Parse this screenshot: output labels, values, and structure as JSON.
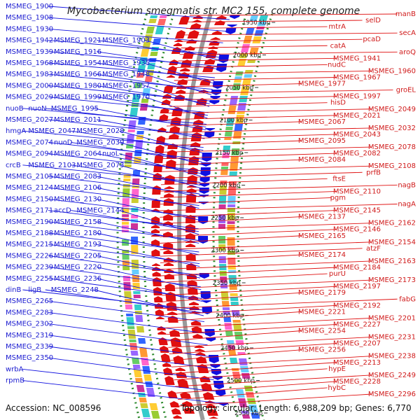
{
  "title": "Mycobacterium smegmatis str. MC2 155, complete genome",
  "accession": "Accession: NC_008596",
  "summary": "Topology: circular; Length: 6,988,209 bp; Genes: 6,770",
  "colors": {
    "forward": "#e01010",
    "reverse": "#1010e0",
    "backbone": "#9a9a9a",
    "guide": "#2e8b2e"
  },
  "ticks": [
    "1950 kbp",
    "2000 kbp",
    "2050 kbp",
    "2100 kbp",
    "2150 kbp",
    "2200 kbp",
    "2250 kbp",
    "2300 kbp",
    "2350 kbp",
    "2400 kbp",
    "2450 kbp",
    "2500 kbp",
    "2550 kbp"
  ],
  "left_labels": [
    [
      "MSMEG_1900"
    ],
    [
      "MSMEG_1908"
    ],
    [
      "MSMEG_1930"
    ],
    [
      "MSMEG_1942",
      "MSMEG_1921",
      "MSMEG_1903"
    ],
    [
      "MSMEG_1939",
      "MSMEG_1916"
    ],
    [
      "MSMEG_1968",
      "MSMEG_1954",
      "MSMEG_1935"
    ],
    [
      "MSMEG_1983",
      "MSMEG_1966",
      "MSMEG_1948"
    ],
    [
      "MSMEG_2000",
      "MSMEG_1980",
      "MSMEG_1957"
    ],
    [
      "MSMEG_2029",
      "MSMEG_1999",
      "MSMEG_1970"
    ],
    [
      "nuoB",
      "nuoN",
      "MSMEG_1995"
    ],
    [
      "MSMEG_2027",
      "MSMEG_2011"
    ],
    [
      "hmgA",
      "MSMEG_2047",
      "MSMEG_2028"
    ],
    [
      "MSMEG_2074",
      "nuoD",
      "MSMEG_2039"
    ],
    [
      "MSMEG_2094",
      "MSMEG_2064",
      "nuoL"
    ],
    [
      "crcB",
      "MSMEG_2103",
      "MSMEG_2073"
    ],
    [
      "MSMEG_2105",
      "MSMEG_2083"
    ],
    [
      "MSMEG_2124",
      "MSMEG_2106"
    ],
    [
      "MSMEG_2150",
      "MSMEG_2130"
    ],
    [
      "MSMEG_2171",
      "accD",
      "MSMEG_2144"
    ],
    [
      "MSMEG_2190",
      "MSMEG_2158"
    ],
    [
      "MSMEG_2188",
      "MSMEG_2180"
    ],
    [
      "MSMEG_2215",
      "MSMEG_2193"
    ],
    [
      "MSMEG_2226",
      "MSMEG_2205"
    ],
    [
      "MSMEG_2239",
      "MSMEG_2220"
    ],
    [
      "MSMEG_2255",
      "MSMEG_2236"
    ],
    [
      "dinB",
      "ligB",
      "MSMEG_2248"
    ],
    [
      "MSMEG_2265"
    ],
    [
      "MSMEG_2283"
    ],
    [
      "MSMEG_2302"
    ],
    [
      "MSMEG_2319"
    ],
    [
      "MSMEG_2339"
    ],
    [
      "MSMEG_2350"
    ],
    [
      "wrbA"
    ],
    [
      "rpmB"
    ]
  ],
  "right_labels": [
    "manB",
    "selD",
    "mtrA",
    "secA",
    "pcaD",
    "catA",
    "aroQ",
    "MSMEG_1941",
    "nudC",
    "MSMEG_1960",
    "MSMEG_1967",
    "MSMEG_1977",
    "groEL",
    "MSMEG_1997",
    "hisD",
    "MSMEG_2049",
    "MSMEG_2021",
    "MSMEG_2067",
    "MSMEG_2032",
    "MSMEG_2043",
    "MSMEG_2095",
    "MSMEG_2078",
    "MSMEG_2082",
    "MSMEG_2084",
    "MSMEG_2108",
    "prfB",
    "ftsE",
    "nagB",
    "MSMEG_2110",
    "pgm",
    "nagA",
    "MSMEG_2145",
    "MSMEG_2137",
    "MSMEG_2162",
    "MSMEG_2146",
    "MSMEG_2165",
    "MSMEG_2154",
    "atzF",
    "MSMEG_2174",
    "MSMEG_2163",
    "MSMEG_2184",
    "purU",
    "MSMEG_2173",
    "MSMEG_2197",
    "MSMEG_2179",
    "fabG",
    "MSMEG_2192",
    "MSMEG_2221",
    "MSMEG_2201",
    "MSMEG_2227",
    "MSMEG_2254",
    "MSMEG_2231",
    "MSMEG_2207",
    "MSMEG_2256",
    "MSMEG_2238",
    "MSMEG_2213",
    "hypE",
    "MSMEG_2249",
    "MSMEG_2228",
    "hybC",
    "MSMEG_2296"
  ]
}
